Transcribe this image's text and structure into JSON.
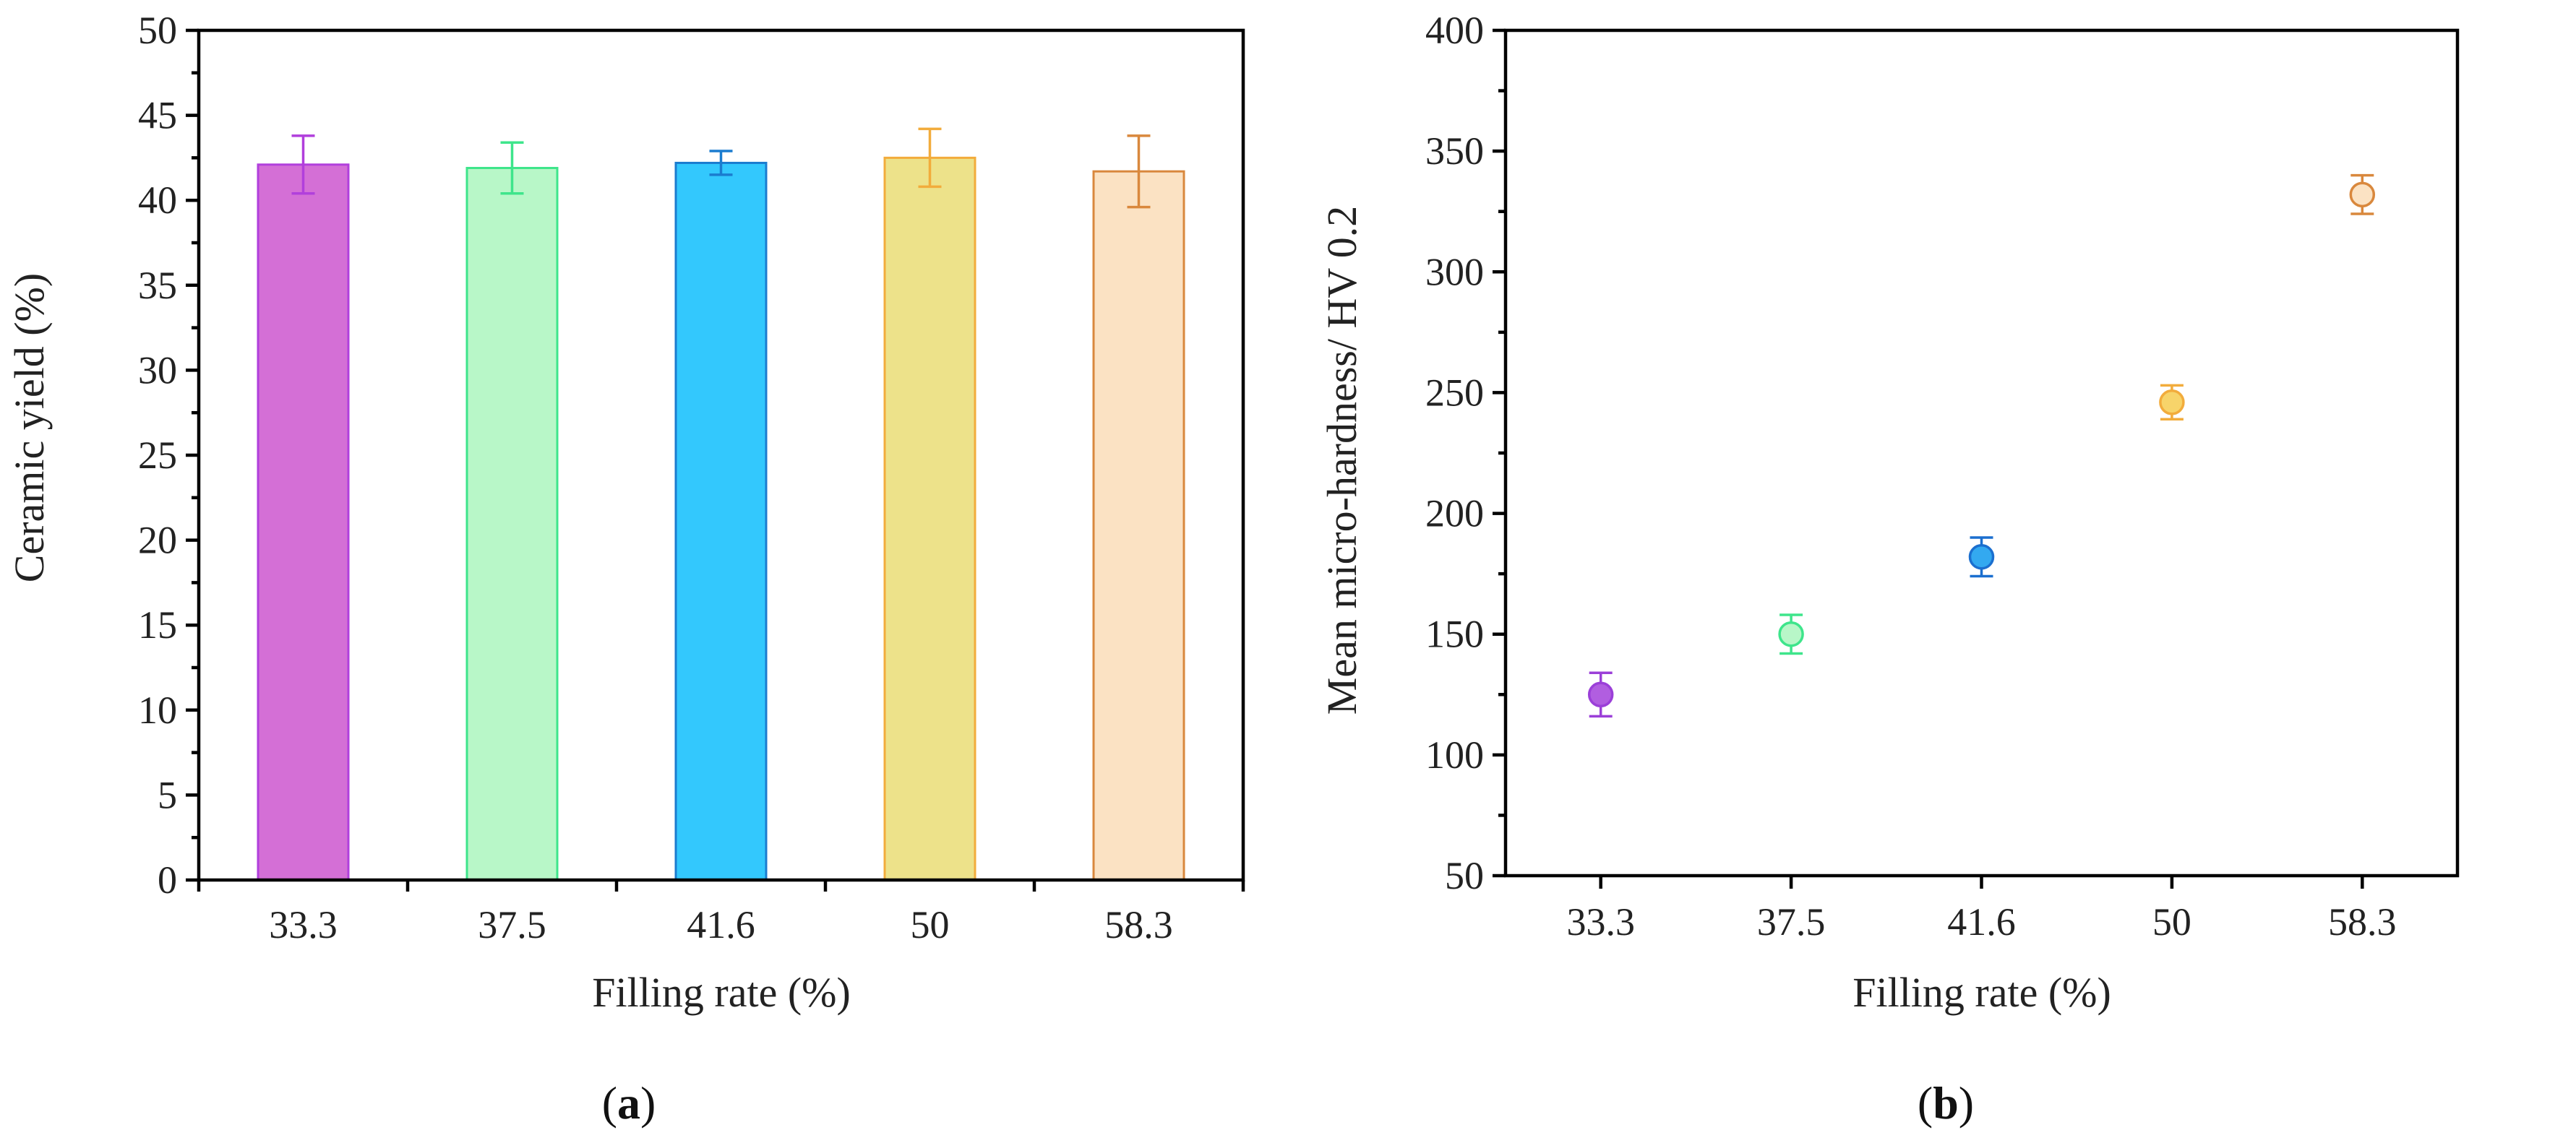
{
  "chart_data": [
    {
      "panel": "a",
      "panel_label": "a",
      "type": "bar",
      "xlabel": "Filling rate (%)",
      "ylabel": "Ceramic yield (%)",
      "ylim": [
        0,
        50
      ],
      "yticks": [
        0,
        5,
        10,
        15,
        20,
        25,
        30,
        35,
        40,
        45,
        50
      ],
      "categories": [
        "33.3",
        "37.5",
        "41.6",
        "50",
        "58.3"
      ],
      "values": [
        42.1,
        41.9,
        42.2,
        42.5,
        41.7
      ],
      "errors": [
        1.7,
        1.5,
        0.7,
        1.7,
        2.1
      ],
      "fill_colors": [
        "#d46fd6",
        "#b8f7c8",
        "#33c8fd",
        "#ede28a",
        "#fbe2c3"
      ],
      "edge_colors": [
        "#b13fdc",
        "#3ee58b",
        "#1b7ccf",
        "#f2ac3c",
        "#d9883d"
      ]
    },
    {
      "panel": "b",
      "panel_label": "b",
      "type": "scatter",
      "xlabel": "Filling rate (%)",
      "ylabel": "Mean micro-hardness/ HV 0.2",
      "ylim": [
        50,
        400
      ],
      "yticks": [
        50,
        100,
        150,
        200,
        250,
        300,
        350,
        400
      ],
      "categories": [
        "33.3",
        "37.5",
        "41.6",
        "50",
        "58.3"
      ],
      "values": [
        125,
        150,
        182,
        246,
        332
      ],
      "errors": [
        9,
        8,
        8,
        7,
        8
      ],
      "fill_colors": [
        "#b15ee0",
        "#b8f7c8",
        "#33a9f0",
        "#f7d46a",
        "#fbe2c3"
      ],
      "edge_colors": [
        "#9b3fd8",
        "#3ee58b",
        "#1b6fcf",
        "#f2ac3c",
        "#d9883d"
      ]
    }
  ]
}
